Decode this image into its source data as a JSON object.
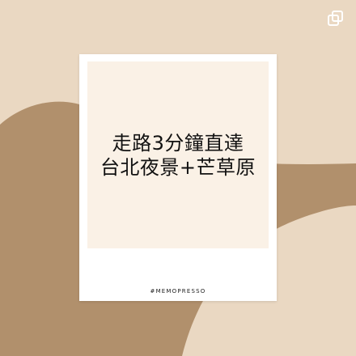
{
  "background_colors": {
    "top": "#ead8c2",
    "bottom": "#b1906c"
  },
  "corner_icon": "instagram-multi-post-icon",
  "card": {
    "headline_lines": [
      "走路3分鐘直達",
      "台北夜景+芒草原"
    ],
    "hashtag": "#MEMOPRESSO"
  }
}
